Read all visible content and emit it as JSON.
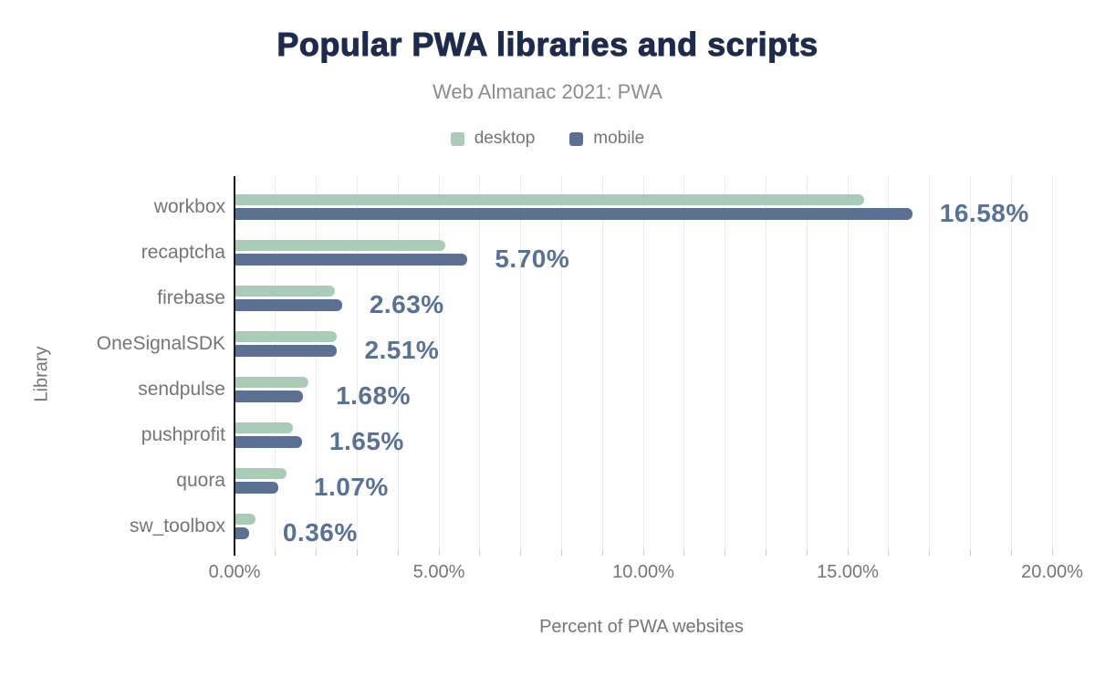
{
  "colors": {
    "background": "#ffffff",
    "title": "#1e2b4d",
    "subtitle": "#8c8c8c",
    "axis_text": "#757575",
    "desktop": "#a9cbb7",
    "mobile": "#5c7191",
    "value_label": "#5b7191",
    "gridline": "#ececec",
    "axis_line": "#151515",
    "tick": "#c9c9c9"
  },
  "chart_data": {
    "type": "bar",
    "orientation": "horizontal",
    "title": "Popular PWA libraries and scripts",
    "subtitle": "Web Almanac 2021: PWA",
    "xlabel": "Percent of PWA websites",
    "ylabel": "Library",
    "xlim": [
      0,
      20
    ],
    "x_major_ticks": [
      0,
      5,
      10,
      15,
      20
    ],
    "x_tick_labels": [
      "0.00%",
      "5.00%",
      "10.00%",
      "15.00%",
      "20.00%"
    ],
    "x_minor_step": 1,
    "grid": "vertical",
    "legend_position": "top",
    "categories": [
      "workbox",
      "recaptcha",
      "firebase",
      "OneSignalSDK",
      "sendpulse",
      "pushprofit",
      "quora",
      "sw_toolbox"
    ],
    "series": [
      {
        "name": "desktop",
        "values": [
          15.4,
          5.15,
          2.45,
          2.5,
          1.81,
          1.43,
          1.27,
          0.51
        ]
      },
      {
        "name": "mobile",
        "values": [
          16.58,
          5.7,
          2.63,
          2.51,
          1.68,
          1.65,
          1.07,
          0.36
        ]
      }
    ],
    "value_labels": {
      "labeled_series": "mobile",
      "texts": [
        "16.58%",
        "5.70%",
        "2.63%",
        "2.51%",
        "1.68%",
        "1.65%",
        "1.07%",
        "0.36%"
      ]
    }
  }
}
